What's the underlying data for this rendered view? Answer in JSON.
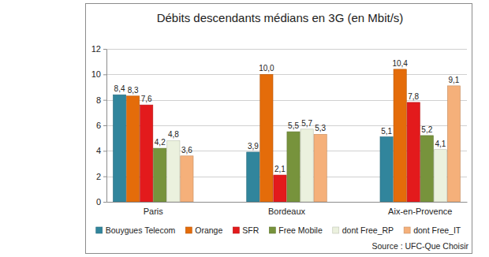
{
  "chart_data": {
    "type": "bar",
    "title": "Débits descendants médians en 3G (en Mbit/s)",
    "source": "Source : UFC-Que Choisir",
    "categories": [
      "Paris",
      "Bordeaux",
      "Aix-en-Provence"
    ],
    "series": [
      {
        "name": "Bouygues Telecom",
        "color": "#31859c",
        "values": [
          8.4,
          3.9,
          5.1
        ],
        "value_labels": [
          "8,4",
          "3,9",
          "5,1"
        ]
      },
      {
        "name": "Orange",
        "color": "#e46c0a",
        "values": [
          8.3,
          10.0,
          10.4
        ],
        "value_labels": [
          "8,3",
          "10,0",
          "10,4"
        ]
      },
      {
        "name": "SFR",
        "color": "#e31a1c",
        "values": [
          7.6,
          2.1,
          7.8
        ],
        "value_labels": [
          "7,6",
          "2,1",
          "7,8"
        ]
      },
      {
        "name": "Free Mobile",
        "color": "#77933c",
        "values": [
          4.2,
          5.5,
          5.2
        ],
        "value_labels": [
          "4,2",
          "5,5",
          "5,2"
        ]
      },
      {
        "name": "dont Free_RP",
        "color": "#ebf1de",
        "values": [
          4.8,
          5.7,
          4.1
        ],
        "value_labels": [
          "4,8",
          "5,7",
          "4,1"
        ]
      },
      {
        "name": "dont Free_IT",
        "color": "#f5b07a",
        "values": [
          3.6,
          5.3,
          9.1
        ],
        "value_labels": [
          "3,6",
          "5,3",
          "9,1"
        ]
      }
    ],
    "ylim": [
      0,
      12
    ],
    "yticks": [
      0,
      2,
      4,
      6,
      8,
      10,
      12
    ],
    "grid": true,
    "legend": "bottom",
    "data_labels": true
  }
}
